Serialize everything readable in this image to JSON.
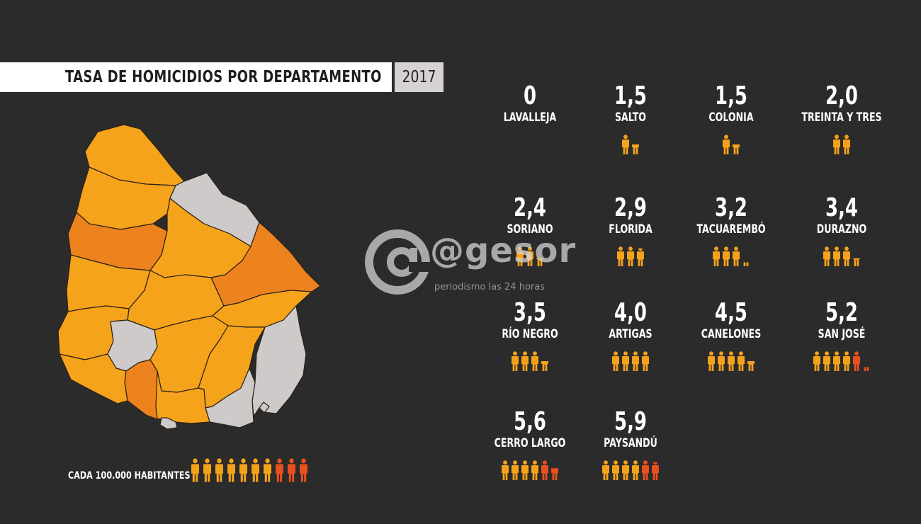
{
  "header": {
    "title": "TASA DE HOMICIDIOS POR DEPARTAMENTO",
    "year": "2017"
  },
  "legend": {
    "label": "CADA 100.000 HABITANTES",
    "icons": 10
  },
  "colors": {
    "background": "#2b2b2b",
    "icon_low": "#f5a21b",
    "icon_high": "#e8501e",
    "map_light": "#f6a31c",
    "map_dark": "#ec831e",
    "map_none": "#cfcaca"
  },
  "watermark": {
    "text": "@gesor",
    "subtitle": "periodismo las 24 horas"
  },
  "chart_data": {
    "type": "pictogram",
    "title": "TASA DE HOMICIDIOS POR DEPARTAMENTO",
    "subtitle": "2017",
    "unit": "CADA 100.000 HABITANTES",
    "categories": [
      "LAVALLEJA",
      "SALTO",
      "COLONIA",
      "TREINTA Y TRES",
      "SORIANO",
      "FLORIDA",
      "TACUAREMBÓ",
      "DURAZNO",
      "RÍO NEGRO",
      "ARTIGAS",
      "CANELONES",
      "SAN JOSÉ",
      "CERRO LARGO",
      "PAYSANDÚ"
    ],
    "values": [
      0,
      1.5,
      1.5,
      2.0,
      2.4,
      2.9,
      3.2,
      3.4,
      3.5,
      4.0,
      4.5,
      5.2,
      5.6,
      5.9
    ],
    "labels": [
      "0",
      "1,5",
      "1,5",
      "2,0",
      "2,4",
      "2,9",
      "3,2",
      "3,4",
      "3,5",
      "4,0",
      "4,5",
      "5,2",
      "5,6",
      "5,9"
    ]
  }
}
